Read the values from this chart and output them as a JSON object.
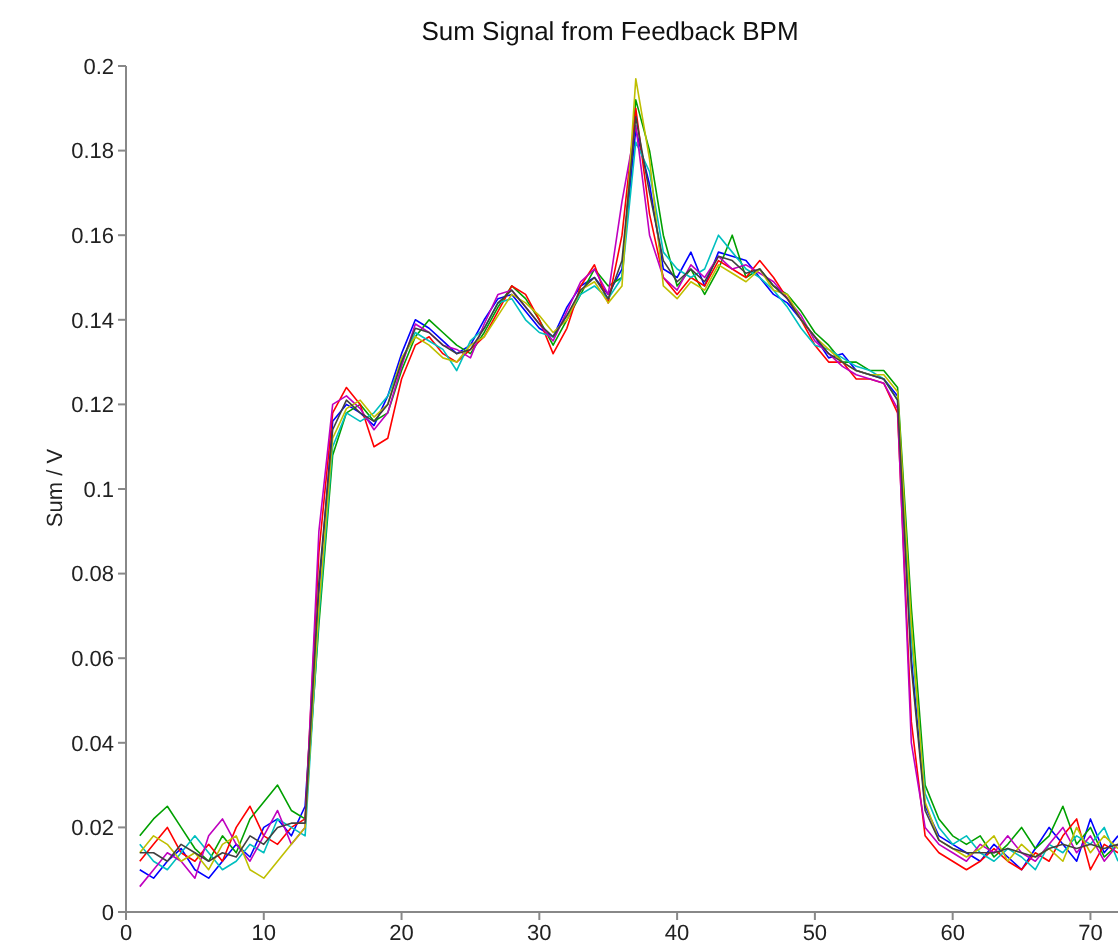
{
  "chart_data": {
    "type": "line",
    "title": "Sum Signal from Feedback BPM",
    "ylabel": "Sum / V",
    "x": [
      1,
      2,
      3,
      4,
      5,
      6,
      7,
      8,
      9,
      10,
      11,
      12,
      13,
      14,
      15,
      16,
      17,
      18,
      19,
      20,
      21,
      22,
      23,
      24,
      25,
      26,
      27,
      28,
      29,
      30,
      31,
      32,
      33,
      34,
      35,
      36,
      37,
      38,
      39,
      40,
      41,
      42,
      43,
      44,
      45,
      46,
      47,
      48,
      49,
      50,
      51,
      52,
      53,
      54,
      55,
      56,
      57,
      58,
      59,
      60,
      61,
      62,
      63,
      64,
      65,
      66,
      67,
      68,
      69,
      70,
      71,
      72
    ],
    "xlim": [
      0,
      72
    ],
    "xticks": [
      0,
      10,
      20,
      30,
      40,
      50,
      60,
      70
    ],
    "ylim": [
      0,
      0.2
    ],
    "yticks": [
      0,
      0.02,
      0.04,
      0.06,
      0.08,
      0.1,
      0.12,
      0.14,
      0.16,
      0.18,
      0.2
    ],
    "series": [
      {
        "color": "#0000ff",
        "values": [
          0.01,
          0.008,
          0.012,
          0.015,
          0.01,
          0.008,
          0.012,
          0.016,
          0.013,
          0.02,
          0.022,
          0.018,
          0.025,
          0.075,
          0.116,
          0.12,
          0.118,
          0.115,
          0.122,
          0.132,
          0.14,
          0.138,
          0.135,
          0.132,
          0.134,
          0.14,
          0.145,
          0.146,
          0.142,
          0.138,
          0.136,
          0.143,
          0.148,
          0.15,
          0.146,
          0.152,
          0.185,
          0.172,
          0.152,
          0.15,
          0.156,
          0.148,
          0.156,
          0.155,
          0.154,
          0.15,
          0.146,
          0.144,
          0.14,
          0.136,
          0.131,
          0.132,
          0.128,
          0.127,
          0.126,
          0.122,
          0.06,
          0.025,
          0.018,
          0.016,
          0.014,
          0.012,
          0.016,
          0.013,
          0.01,
          0.015,
          0.02,
          0.016,
          0.012,
          0.022,
          0.014,
          0.018
        ]
      },
      {
        "color": "#00a000",
        "values": [
          0.018,
          0.022,
          0.025,
          0.02,
          0.015,
          0.012,
          0.018,
          0.014,
          0.022,
          0.026,
          0.03,
          0.024,
          0.022,
          0.068,
          0.108,
          0.118,
          0.12,
          0.116,
          0.118,
          0.128,
          0.136,
          0.14,
          0.137,
          0.134,
          0.132,
          0.137,
          0.143,
          0.148,
          0.145,
          0.14,
          0.134,
          0.14,
          0.146,
          0.152,
          0.148,
          0.15,
          0.192,
          0.18,
          0.16,
          0.148,
          0.152,
          0.146,
          0.152,
          0.16,
          0.15,
          0.152,
          0.148,
          0.146,
          0.142,
          0.137,
          0.134,
          0.13,
          0.13,
          0.128,
          0.128,
          0.124,
          0.072,
          0.03,
          0.022,
          0.018,
          0.016,
          0.018,
          0.013,
          0.016,
          0.02,
          0.015,
          0.018,
          0.025,
          0.016,
          0.02,
          0.013,
          0.016
        ]
      },
      {
        "color": "#ff0000",
        "values": [
          0.012,
          0.016,
          0.02,
          0.014,
          0.012,
          0.016,
          0.012,
          0.02,
          0.025,
          0.018,
          0.016,
          0.02,
          0.022,
          0.085,
          0.118,
          0.124,
          0.12,
          0.11,
          0.112,
          0.126,
          0.134,
          0.136,
          0.132,
          0.13,
          0.133,
          0.136,
          0.142,
          0.148,
          0.146,
          0.14,
          0.132,
          0.138,
          0.148,
          0.153,
          0.144,
          0.16,
          0.19,
          0.165,
          0.15,
          0.146,
          0.15,
          0.148,
          0.154,
          0.152,
          0.15,
          0.154,
          0.15,
          0.145,
          0.14,
          0.134,
          0.13,
          0.13,
          0.126,
          0.126,
          0.125,
          0.118,
          0.045,
          0.018,
          0.014,
          0.012,
          0.01,
          0.012,
          0.015,
          0.012,
          0.01,
          0.014,
          0.012,
          0.018,
          0.022,
          0.01,
          0.016,
          0.014
        ]
      },
      {
        "color": "#00bfbf",
        "values": [
          0.016,
          0.012,
          0.01,
          0.014,
          0.018,
          0.014,
          0.01,
          0.012,
          0.016,
          0.014,
          0.022,
          0.02,
          0.018,
          0.07,
          0.11,
          0.118,
          0.116,
          0.118,
          0.122,
          0.13,
          0.137,
          0.135,
          0.133,
          0.128,
          0.135,
          0.138,
          0.144,
          0.145,
          0.14,
          0.137,
          0.136,
          0.141,
          0.146,
          0.148,
          0.145,
          0.15,
          0.182,
          0.175,
          0.156,
          0.152,
          0.15,
          0.152,
          0.16,
          0.156,
          0.152,
          0.15,
          0.147,
          0.143,
          0.138,
          0.134,
          0.133,
          0.131,
          0.129,
          0.128,
          0.126,
          0.121,
          0.065,
          0.028,
          0.02,
          0.016,
          0.018,
          0.014,
          0.012,
          0.015,
          0.013,
          0.01,
          0.016,
          0.014,
          0.018,
          0.016,
          0.02,
          0.012
        ]
      },
      {
        "color": "#bf00bf",
        "values": [
          0.006,
          0.01,
          0.014,
          0.012,
          0.008,
          0.018,
          0.022,
          0.016,
          0.012,
          0.018,
          0.024,
          0.016,
          0.02,
          0.09,
          0.12,
          0.122,
          0.119,
          0.114,
          0.118,
          0.129,
          0.139,
          0.137,
          0.134,
          0.133,
          0.131,
          0.139,
          0.146,
          0.147,
          0.143,
          0.139,
          0.135,
          0.142,
          0.149,
          0.152,
          0.146,
          0.168,
          0.186,
          0.16,
          0.15,
          0.147,
          0.153,
          0.15,
          0.155,
          0.152,
          0.153,
          0.151,
          0.149,
          0.145,
          0.141,
          0.135,
          0.132,
          0.129,
          0.127,
          0.126,
          0.125,
          0.119,
          0.04,
          0.02,
          0.016,
          0.014,
          0.012,
          0.016,
          0.014,
          0.018,
          0.014,
          0.012,
          0.016,
          0.02,
          0.014,
          0.018,
          0.012,
          0.016
        ]
      },
      {
        "color": "#bfbf00",
        "values": [
          0.014,
          0.018,
          0.016,
          0.012,
          0.014,
          0.01,
          0.016,
          0.018,
          0.01,
          0.008,
          0.012,
          0.016,
          0.02,
          0.072,
          0.112,
          0.119,
          0.121,
          0.117,
          0.12,
          0.131,
          0.136,
          0.134,
          0.131,
          0.13,
          0.134,
          0.136,
          0.141,
          0.146,
          0.144,
          0.141,
          0.137,
          0.14,
          0.147,
          0.149,
          0.144,
          0.148,
          0.197,
          0.178,
          0.148,
          0.145,
          0.149,
          0.147,
          0.153,
          0.151,
          0.149,
          0.152,
          0.147,
          0.146,
          0.14,
          0.136,
          0.133,
          0.13,
          0.128,
          0.127,
          0.127,
          0.123,
          0.068,
          0.026,
          0.017,
          0.015,
          0.013,
          0.015,
          0.018,
          0.012,
          0.016,
          0.013,
          0.015,
          0.012,
          0.02,
          0.014,
          0.018,
          0.015
        ]
      },
      {
        "color": "#404040",
        "values": [
          0.014,
          0.014,
          0.012,
          0.016,
          0.014,
          0.012,
          0.014,
          0.013,
          0.018,
          0.016,
          0.02,
          0.021,
          0.021,
          0.078,
          0.114,
          0.121,
          0.118,
          0.116,
          0.12,
          0.13,
          0.138,
          0.137,
          0.134,
          0.132,
          0.133,
          0.138,
          0.144,
          0.147,
          0.143,
          0.139,
          0.136,
          0.141,
          0.147,
          0.15,
          0.145,
          0.154,
          0.188,
          0.17,
          0.154,
          0.149,
          0.152,
          0.149,
          0.155,
          0.154,
          0.151,
          0.152,
          0.148,
          0.145,
          0.14,
          0.136,
          0.132,
          0.13,
          0.128,
          0.127,
          0.126,
          0.121,
          0.058,
          0.024,
          0.017,
          0.015,
          0.014,
          0.014,
          0.014,
          0.015,
          0.014,
          0.013,
          0.015,
          0.016,
          0.015,
          0.016,
          0.015,
          0.016
        ]
      }
    ]
  }
}
